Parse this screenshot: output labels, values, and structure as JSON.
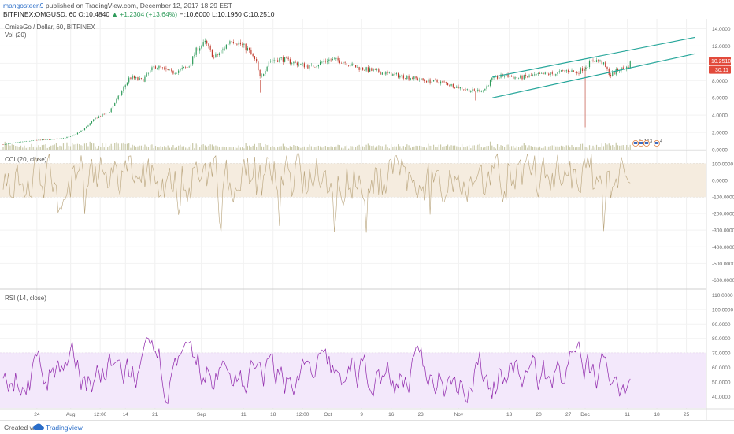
{
  "header": {
    "user": "mangosteen9",
    "published": " published on TradingView.com, December 12, 2017 18:29 EST",
    "symbol": "BITFINEX:OMGUSD, 60",
    "open_label": "O:",
    "open": "10.4840",
    "change": "▲ +1.2304 (+13.64%)",
    "high_label": "H:",
    "high": "10.6000",
    "low_label": "L:",
    "low": "10.1960",
    "close_label": "C:",
    "close": "10.2510",
    "last": "10.2510"
  },
  "footer": {
    "created": "Created with",
    "brand": "TradingView"
  },
  "colors": {
    "up": "#2e9b5a",
    "down": "#c0392b",
    "trend": "#26a69a",
    "volume": "#c9c9a8",
    "cci": "#b8a37a",
    "cci_band": "#f5ecdf",
    "rsi": "#8e24aa",
    "rsi_band": "#f3e8fb",
    "price_badge": "#e24a3b"
  },
  "chart_data": [
    {
      "type": "candlestick",
      "title": "OmiseGo / Dollar, 60, BITFINEX",
      "subtitle": "Vol (20)",
      "y_ticks": [
        "14.0000",
        "12.0000",
        "10.0000",
        "8.0000",
        "6.0000",
        "4.0000",
        "2.0000",
        "0.0000"
      ],
      "ylim": [
        0,
        14.5
      ],
      "last_price": "10.2510",
      "countdown": "30:11",
      "events": [
        "5",
        "13",
        "3",
        "4"
      ],
      "trend_lines": [
        {
          "from": [
            "Nov 9",
            8.4
          ],
          "to": [
            "Dec 27",
            13.0
          ]
        },
        {
          "from": [
            "Nov 9",
            6.0
          ],
          "to": [
            "Dec 27",
            11.1
          ]
        }
      ],
      "path_points": [
        [
          "Jul 16",
          0.6
        ],
        [
          "Jul 20",
          0.9
        ],
        [
          "Jul 24",
          1.1
        ],
        [
          "Jul 28",
          1.2
        ],
        [
          "Aug 1",
          1.5
        ],
        [
          "Aug 4",
          2.3
        ],
        [
          "Aug 7",
          3.7
        ],
        [
          "Aug 10",
          4.3
        ],
        [
          "Aug 13",
          6.6
        ],
        [
          "Aug 15",
          8.4
        ],
        [
          "Aug 18",
          8.0
        ],
        [
          "Aug 21",
          9.7
        ],
        [
          "Aug 25",
          8.9
        ],
        [
          "Aug 29",
          9.6
        ],
        [
          "Aug 31",
          11.7
        ],
        [
          "Sep 2",
          12.4
        ],
        [
          "Sep 4",
          10.6
        ],
        [
          "Sep 6",
          11.5
        ],
        [
          "Sep 8",
          12.8
        ],
        [
          "Sep 10",
          12.3
        ],
        [
          "Sep 12",
          11.6
        ],
        [
          "Sep 14",
          10.1
        ],
        [
          "Sep 15",
          8.1
        ],
        [
          "Sep 17",
          10.3
        ],
        [
          "Sep 20",
          10.5
        ],
        [
          "Sep 24",
          9.9
        ],
        [
          "Sep 27",
          9.6
        ],
        [
          "Oct 1",
          10.4
        ],
        [
          "Oct 4",
          10.3
        ],
        [
          "Oct 8",
          9.5
        ],
        [
          "Oct 12",
          9.1
        ],
        [
          "Oct 16",
          8.7
        ],
        [
          "Oct 20",
          8.4
        ],
        [
          "Oct 24",
          8.0
        ],
        [
          "Oct 28",
          7.8
        ],
        [
          "Nov 1",
          7.2
        ],
        [
          "Nov 4",
          6.8
        ],
        [
          "Nov 7",
          6.9
        ],
        [
          "Nov 9",
          8.2
        ],
        [
          "Nov 12",
          8.6
        ],
        [
          "Nov 15",
          8.3
        ],
        [
          "Nov 18",
          8.5
        ],
        [
          "Nov 21",
          8.7
        ],
        [
          "Nov 24",
          8.8
        ],
        [
          "Nov 27",
          9.2
        ],
        [
          "Nov 29",
          8.9
        ],
        [
          "Dec 1",
          9.6
        ],
        [
          "Dec 3",
          10.4
        ],
        [
          "Dec 5",
          10.1
        ],
        [
          "Dec 7",
          8.6
        ],
        [
          "Dec 9",
          9.3
        ],
        [
          "Dec 11",
          9.5
        ],
        [
          "Dec 12",
          10.25
        ]
      ]
    },
    {
      "type": "line",
      "title": "CCI (20, close)",
      "y_ticks": [
        "100.0000",
        "0.0000",
        "-100.0000",
        "-200.0000",
        "-300.0000",
        "-400.0000",
        "-500.0000",
        "-600.0000"
      ],
      "ylim": [
        -650,
        170
      ],
      "band": [
        -100,
        100
      ],
      "range_estimate": [
        -350,
        160
      ]
    },
    {
      "type": "line",
      "title": "RSI (14, close)",
      "y_ticks": [
        "110.0000",
        "100.0000",
        "90.0000",
        "80.0000",
        "70.0000",
        "60.0000",
        "50.0000",
        "40.0000"
      ],
      "ylim": [
        32,
        113
      ],
      "band": [
        30,
        70
      ],
      "range_estimate": [
        32,
        89
      ]
    }
  ],
  "x_axis": {
    "start": "Jul 16",
    "end": "Dec 29",
    "ticks": [
      {
        "label": "24",
        "date": "Jul 24"
      },
      {
        "label": "Aug",
        "date": "Aug 1"
      },
      {
        "label": "12:00",
        "date": "Aug 8"
      },
      {
        "label": "14",
        "date": "Aug 14"
      },
      {
        "label": "21",
        "date": "Aug 21"
      },
      {
        "label": "Sep",
        "date": "Sep 1"
      },
      {
        "label": "11",
        "date": "Sep 11"
      },
      {
        "label": "18",
        "date": "Sep 18"
      },
      {
        "label": "12:00",
        "date": "Sep 25"
      },
      {
        "label": "Oct",
        "date": "Oct 1"
      },
      {
        "label": "9",
        "date": "Oct 9"
      },
      {
        "label": "16",
        "date": "Oct 16"
      },
      {
        "label": "23",
        "date": "Oct 23"
      },
      {
        "label": "Nov",
        "date": "Nov 1"
      },
      {
        "label": "13",
        "date": "Nov 13"
      },
      {
        "label": "20",
        "date": "Nov 20"
      },
      {
        "label": "27",
        "date": "Nov 27"
      },
      {
        "label": "Dec",
        "date": "Dec 1"
      },
      {
        "label": "11",
        "date": "Dec 11"
      },
      {
        "label": "18",
        "date": "Dec 18"
      },
      {
        "label": "25",
        "date": "Dec 25"
      }
    ]
  }
}
